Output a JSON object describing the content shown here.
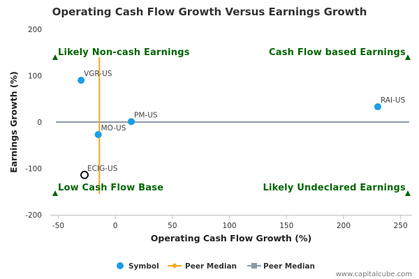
{
  "chart_data": {
    "type": "scatter",
    "title": "Operating Cash Flow Growth Versus Earnings Growth",
    "xlabel": "Operating Cash Flow Growth (%)",
    "ylabel": "Earnings Growth (%)",
    "xlim": [
      -57,
      260
    ],
    "ylim": [
      -200,
      200
    ],
    "x_ticks": [
      -50,
      0,
      50,
      100,
      150,
      200,
      250
    ],
    "y_ticks": [
      -200,
      -100,
      0,
      100,
      200
    ],
    "grid": false,
    "points": [
      {
        "label": "VGR-US",
        "x": -30,
        "y": 90,
        "highlight": false
      },
      {
        "label": "PM-US",
        "x": 14,
        "y": 1,
        "highlight": false
      },
      {
        "label": "MO-US",
        "x": -15,
        "y": -27,
        "highlight": false
      },
      {
        "label": "RAI-US",
        "x": 230,
        "y": 33,
        "highlight": false
      },
      {
        "label": "ECIG-US",
        "x": -27,
        "y": -114,
        "highlight": true
      }
    ],
    "peer_median_x": -14,
    "peer_median_x_range": [
      -155,
      140
    ],
    "peer_median_y": 0,
    "quadrants": {
      "top_left": "Likely Non-cash Earnings",
      "top_right": "Cash Flow based Earnings",
      "bottom_left": "Low Cash Flow Base",
      "bottom_right": "Likely Undeclared Earnings"
    },
    "legend": [
      {
        "label": "Symbol",
        "color": "#1a9ee6",
        "marker": "circle"
      },
      {
        "label": "Peer Median",
        "color": "#f5a623",
        "marker": "diamond"
      },
      {
        "label": "Peer Median",
        "color": "#8c9aa8",
        "marker": "square"
      }
    ],
    "legend_position": "bottom",
    "colors": {
      "point": "#1a9ee6",
      "median_x_line": "#f5a623",
      "median_y_line": "#8c9aa8",
      "quadrant_text": "#006600"
    }
  },
  "credit": "www.capitalcube.com"
}
